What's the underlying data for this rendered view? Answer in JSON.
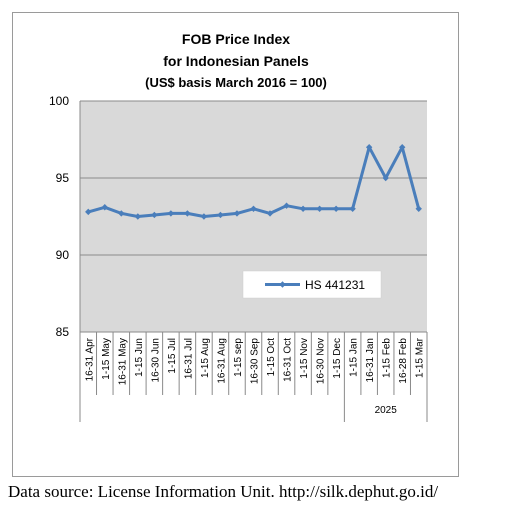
{
  "chart_data": {
    "type": "line",
    "title_lines": [
      "FOB Price Index",
      "for Indonesian Panels",
      "(US$ basis March 2016 = 100)"
    ],
    "categories": [
      "16-31 Apr",
      "1-15 May",
      "16-31 May",
      "1-15 Jun",
      "16-30 Jun",
      "1-15 Jul",
      "16-31 Jul",
      "1-15 Aug",
      "16-31 Aug",
      "1-15 sep",
      "16-30 Sep",
      "1-15 Oct",
      "16-31 Oct",
      "1-15 Nov",
      "16-30 Nov",
      "1-15 Dec",
      "1-15 Jan",
      "16-31 Jan",
      "1-15 Feb",
      "16-28 Feb",
      "1-15 Mar"
    ],
    "category_group": {
      "label": "2025",
      "from_index": 16,
      "to_index": 20
    },
    "series": [
      {
        "name": "HS 441231",
        "color": "#4a7ebb",
        "values": [
          92.8,
          93.1,
          92.7,
          92.5,
          92.6,
          92.7,
          92.7,
          92.5,
          92.6,
          92.7,
          93.0,
          92.7,
          93.2,
          93.0,
          93.0,
          93.0,
          93.0,
          97.0,
          95.0,
          97.0,
          93.0
        ]
      }
    ],
    "ylim": [
      85,
      100
    ],
    "yticks": [
      85,
      90,
      95,
      100
    ],
    "grid": true,
    "plot_background": "#d9d9d9",
    "legend_position": "inside-lower-right"
  },
  "source_note": "Data source: License Information Unit. http://silk.dephut.go.id/"
}
